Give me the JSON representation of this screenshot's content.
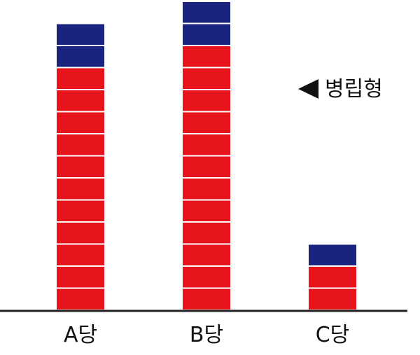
{
  "chart_data": {
    "type": "bar",
    "stacked": true,
    "unit_blocks": true,
    "categories": [
      "A당",
      "B당",
      "C당"
    ],
    "series": [
      {
        "values": [
          11,
          12,
          2
        ],
        "color": "#e8141c"
      },
      {
        "values": [
          2,
          2,
          1
        ],
        "color": "#1a237e"
      }
    ],
    "annotation": {
      "text": "병립형",
      "marker": "left-triangle",
      "color": "#111111"
    },
    "ylim": [
      0,
      14
    ],
    "legend": "none",
    "grid": false
  }
}
